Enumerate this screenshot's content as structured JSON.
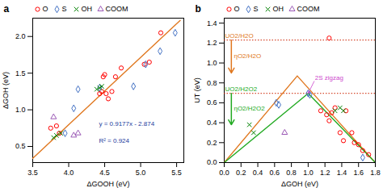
{
  "chart_data": [
    {
      "type": "scatter",
      "title": "a",
      "xlabel": "ΔGOOH (eV)",
      "ylabel": "ΔGOH (eV)",
      "xlim": [
        3.5,
        5.6
      ],
      "xticks": [
        3.5,
        {
          "value": 4.0,
          "label": "4.0"
        },
        4.5,
        {
          "value": 5.0,
          "label": "5.0"
        },
        5.5
      ],
      "ylim": [
        0.28,
        2.25
      ],
      "yticks": [
        0.5,
        {
          "value": 1.0,
          "label": "1.0"
        },
        1.5,
        {
          "value": 2.0,
          "label": "2.0"
        }
      ],
      "grid": false,
      "legend": "top",
      "series": [
        {
          "type": "line",
          "color": "#e07820",
          "x": [
            3.5,
            5.55
          ],
          "values": [
            0.33795,
            2.219235
          ]
        },
        {
          "name": "O",
          "type": "scatter",
          "marker": "circle",
          "color": "red",
          "x": [
            3.75,
            3.83,
            3.87,
            4.43,
            4.46,
            4.48,
            4.5,
            4.52,
            4.55,
            4.6,
            4.65,
            4.73,
            5.05,
            5.12,
            5.28
          ],
          "values": [
            0.75,
            0.78,
            0.68,
            1.22,
            1.25,
            1.45,
            1.48,
            1.22,
            1.15,
            1.25,
            1.45,
            1.57,
            1.62,
            1.65,
            2.05
          ]
        },
        {
          "name": "S",
          "type": "scatter",
          "marker": "diamond",
          "color": "#4472c4",
          "x": [
            3.95,
            4.07,
            4.13,
            4.43,
            4.9,
            5.07,
            5.27,
            5.48
          ],
          "values": [
            0.68,
            1.02,
            1.28,
            1.3,
            1.32,
            1.62,
            1.8,
            2.05
          ]
        },
        {
          "name": "OH",
          "type": "scatter",
          "marker": "x",
          "color": "green",
          "x": [
            3.79,
            3.83,
            3.89,
            4.39,
            4.43,
            4.46
          ],
          "values": [
            0.62,
            0.65,
            0.68,
            1.28,
            1.3,
            1.32
          ]
        },
        {
          "name": "COOM",
          "type": "scatter",
          "marker": "triangle",
          "color": "#9b59b6",
          "x": [
            3.79,
            4.07,
            4.13
          ],
          "values": [
            0.9,
            0.65,
            0.68
          ]
        }
      ],
      "annotations": [
        {
          "text": "y = 0.9177x - 2.874",
          "x": 4.42,
          "y": 0.78,
          "color": "#1a3a9c"
        },
        {
          "text": "R² = 0.924",
          "x": 4.42,
          "y": 0.55,
          "color": "#1a3a9c"
        }
      ]
    },
    {
      "type": "scatter",
      "title": "b",
      "xlabel": "ΔGOH (eV)",
      "ylabel": "UT (eV)",
      "xlim": [
        0.0,
        1.8
      ],
      "xticks": [
        {
          "value": 0.0,
          "label": "0.0"
        },
        0.2,
        0.4,
        0.6,
        0.8,
        {
          "value": 1.0,
          "label": "1.0"
        },
        1.2,
        1.4,
        1.6,
        1.8
      ],
      "ylim": [
        0.0,
        1.45
      ],
      "yticks": [
        {
          "value": 0.0,
          "label": "0.0"
        },
        0.2,
        0.4,
        0.6,
        0.8,
        {
          "value": 1.0,
          "label": "1.0"
        },
        1.2,
        1.4
      ],
      "grid": false,
      "legend": "top",
      "series": [
        {
          "type": "hline",
          "color": "#cc2200",
          "line_style": "dotted",
          "values": [
            1.23,
            0.695
          ]
        },
        {
          "type": "line",
          "color": "#e07820",
          "x": [
            0.0,
            0.87,
            1.8
          ],
          "values": [
            0.0,
            0.87,
            0.0
          ]
        },
        {
          "type": "line",
          "color": "#22aa22",
          "x": [
            0.0,
            1.0,
            1.8
          ],
          "values": [
            0.0,
            0.695,
            0.0
          ]
        },
        {
          "name": "O",
          "type": "scatter",
          "marker": "circle",
          "color": "red",
          "x": [
            1.15,
            1.22,
            1.25,
            1.28,
            1.32,
            1.38,
            1.42,
            1.45,
            1.52,
            1.55,
            1.6,
            1.65,
            1.72,
            1.25
          ],
          "values": [
            0.52,
            0.48,
            0.42,
            0.5,
            0.55,
            0.3,
            0.22,
            0.52,
            0.3,
            0.2,
            0.18,
            0.12,
            0.08,
            1.25
          ]
        },
        {
          "name": "S",
          "type": "scatter",
          "marker": "diamond",
          "color": "#4472c4",
          "x": [
            0.62,
            0.65,
            1.0,
            1.02,
            1.65
          ],
          "values": [
            0.6,
            0.58,
            0.695,
            0.68,
            0.05
          ]
        },
        {
          "name": "OH",
          "type": "scatter",
          "marker": "x",
          "color": "green",
          "x": [
            0.3,
            0.35,
            1.32,
            1.38,
            1.42
          ],
          "values": [
            0.38,
            0.3,
            0.52,
            0.55,
            0.52
          ]
        },
        {
          "name": "COOM",
          "type": "scatter",
          "marker": "triangle",
          "color": "#9b59b6",
          "x": [
            0.72
          ],
          "values": [
            0.3
          ]
        }
      ],
      "annotations": [
        {
          "x": 0.085,
          "y": 1.23,
          "arrow_x": 0.085,
          "arrow_y": 0.9,
          "color": "#e07820"
        },
        {
          "x": 0.085,
          "y": 0.695,
          "arrow_x": 0.085,
          "arrow_y": 0.38,
          "color": "#22aa22"
        },
        {
          "text": "UO2/H2O",
          "x": 0.01,
          "y": 1.255,
          "color": "#e07820"
        },
        {
          "text": "ηO2/H2O",
          "x": 0.115,
          "y": 1.05,
          "color": "#e07820"
        },
        {
          "text": "UO2/H2O2",
          "x": 0.01,
          "y": 0.715,
          "color": "#22aa22"
        },
        {
          "text": "ηO2/H2O2",
          "x": 0.115,
          "y": 0.52,
          "color": "#22aa22"
        },
        {
          "text": "2S zigzag",
          "x": 1.08,
          "y": 0.83,
          "arrow_x": 1.0,
          "arrow_y": 0.695,
          "color": "#cc44cc"
        }
      ]
    }
  ]
}
